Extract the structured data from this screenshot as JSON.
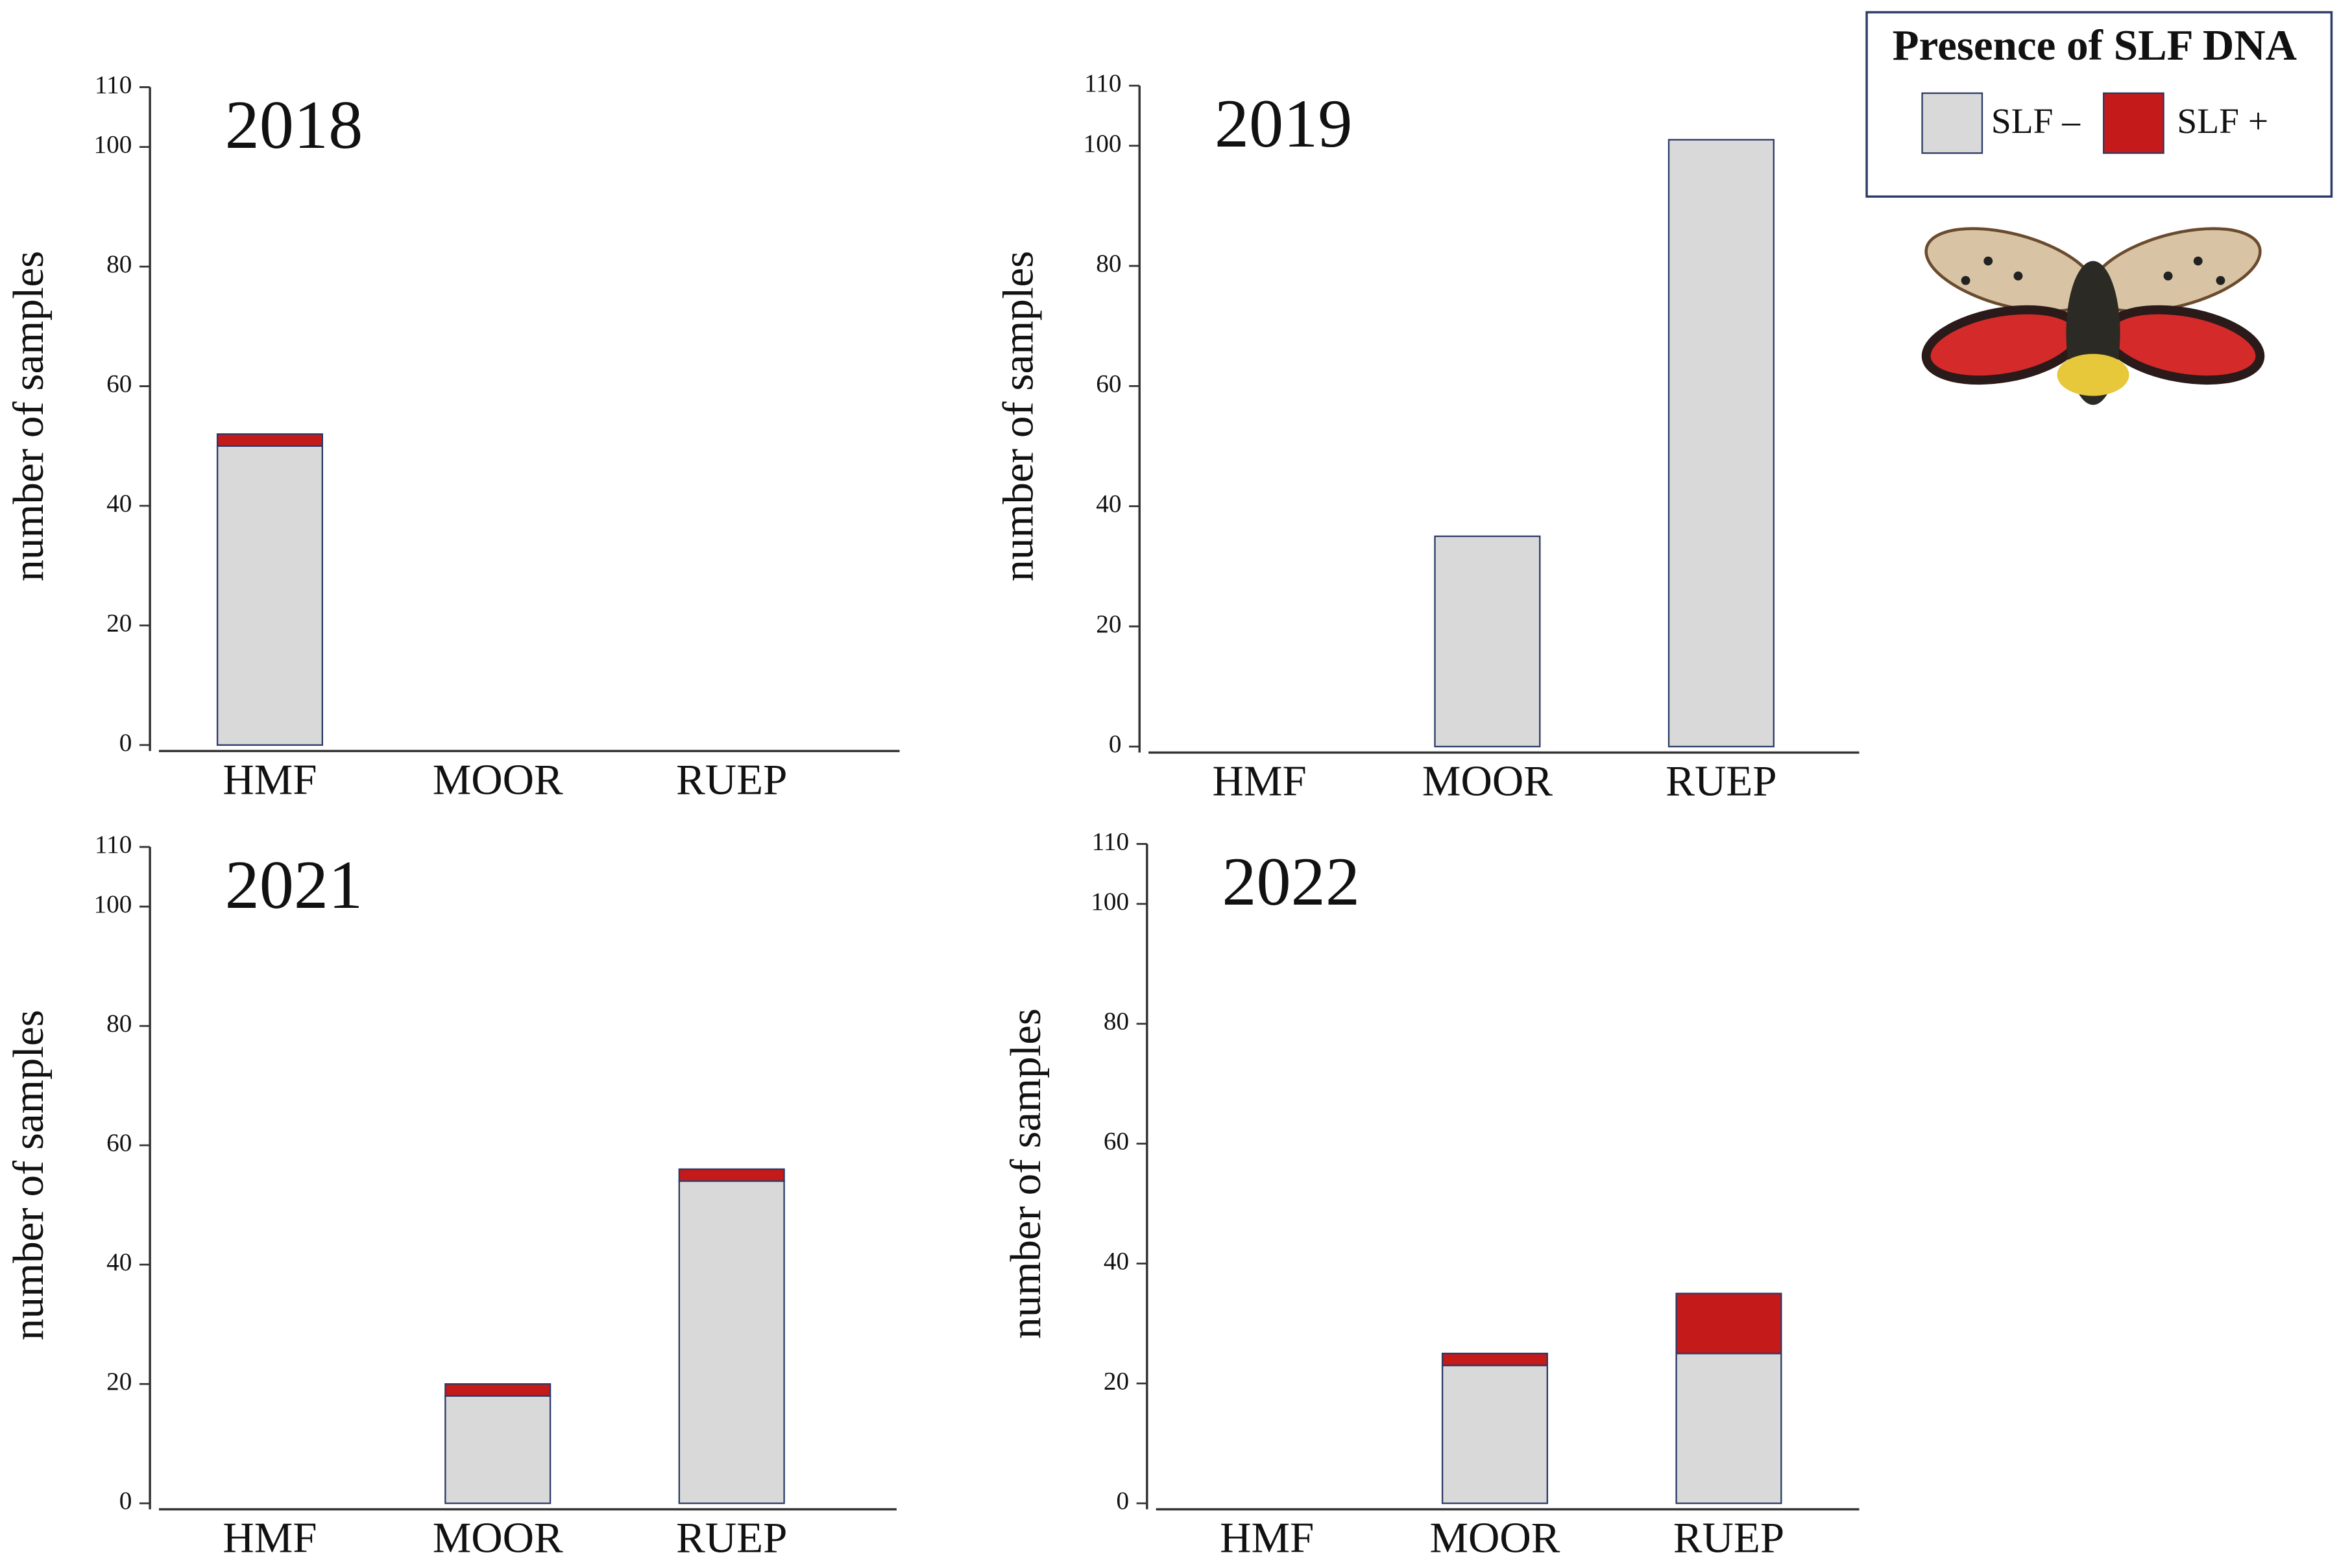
{
  "legend": {
    "title": "Presence of SLF DNA"
  },
  "chart_data": [
    {
      "type": "stacked-bar",
      "title": "2018",
      "y_label": "number of samples",
      "categories": [
        "HMF",
        "MOOR",
        "RUEP"
      ],
      "series": [
        {
          "name": "SLF –",
          "color": "#d9d9d9",
          "values": [
            50,
            0,
            0
          ]
        },
        {
          "name": "SLF +",
          "color": "#c41a1a",
          "values": [
            2,
            0,
            0
          ]
        }
      ],
      "ylim": [
        0,
        110
      ],
      "yticks": [
        0,
        20,
        40,
        60,
        80,
        100,
        110
      ]
    },
    {
      "type": "stacked-bar",
      "title": "2019",
      "y_label": "number of samples",
      "categories": [
        "HMF",
        "MOOR",
        "RUEP"
      ],
      "series": [
        {
          "color": "#d9d9d9",
          "values": [
            0,
            35,
            101
          ]
        },
        {
          "color": "#c41a1a",
          "values": [
            0,
            0,
            0
          ]
        }
      ],
      "ylim": [
        0,
        110
      ],
      "yticks": [
        0,
        20,
        40,
        60,
        80,
        100,
        110
      ]
    },
    {
      "type": "stacked-bar",
      "title": "2021",
      "y_label": "number of samples",
      "categories": [
        "HMF",
        "MOOR",
        "RUEP"
      ],
      "series": [
        {
          "color": "#d9d9d9",
          "values": [
            0,
            18,
            54
          ]
        },
        {
          "color": "#c41a1a",
          "values": [
            0,
            2,
            2
          ]
        }
      ],
      "ylim": [
        0,
        110
      ],
      "yticks": [
        0,
        20,
        40,
        60,
        80,
        100,
        110
      ]
    },
    {
      "type": "stacked-bar",
      "title": "2022",
      "y_label": "number of samples",
      "categories": [
        "HMF",
        "MOOR",
        "RUEP"
      ],
      "series": [
        {
          "color": "#d9d9d9",
          "values": [
            0,
            23,
            25
          ]
        },
        {
          "color": "#c41a1a",
          "values": [
            0,
            2,
            10
          ]
        }
      ],
      "ylim": [
        0,
        110
      ],
      "yticks": [
        0,
        20,
        40,
        60,
        80,
        100,
        110
      ]
    }
  ]
}
